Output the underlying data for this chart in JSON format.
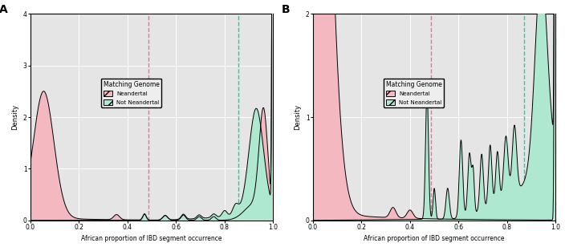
{
  "panel_A_label": "A",
  "panel_B_label": "B",
  "xlabel": "African proportion of IBD segment occurrence",
  "ylabel": "Density",
  "legend_title": "Matching Genome",
  "legend_neandertal": "Neandertal",
  "legend_not_neandertal": "Not Neandertal",
  "color_neandertal": "#f4b8c1",
  "color_not_neandertal": "#aee8d0",
  "bg_color": "#e5e5e5",
  "vline_pink": "#ff6699",
  "vline_cyan": "#00ddaa",
  "vline_gray": "#aaaaaa",
  "panelA_vline1": 0.485,
  "panelA_vline2": 0.855,
  "panelB_vline1": 0.485,
  "panelB_vline2": 0.87,
  "panelA_ylim": [
    0,
    4
  ],
  "panelB_ylim": [
    0,
    2
  ],
  "panelA_yticks": [
    0,
    1,
    2,
    3,
    4
  ],
  "panelB_yticks": [
    0,
    1,
    2
  ],
  "xticks": [
    0.0,
    0.2,
    0.4,
    0.6,
    0.8,
    1.0
  ]
}
